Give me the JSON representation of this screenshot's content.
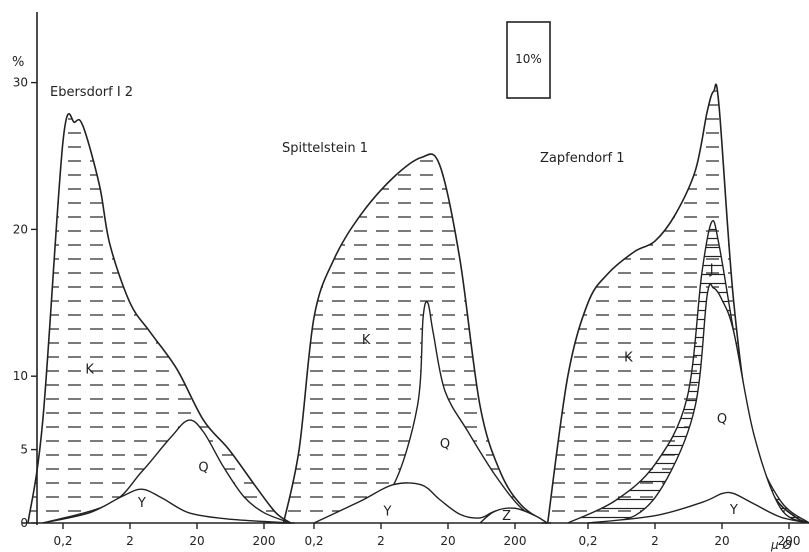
{
  "y_axis": {
    "unit": "%",
    "ticks": [
      {
        "value": 0,
        "label": "0"
      },
      {
        "value": 5,
        "label": "5"
      },
      {
        "value": 10,
        "label": "10"
      },
      {
        "value": 20,
        "label": "20"
      },
      {
        "value": 30,
        "label": "30"
      }
    ]
  },
  "x_unit": "μ Ø",
  "scale_box_label": "10%",
  "chart_data": [
    {
      "type": "area",
      "title": "Ebersdorf I 2",
      "x_ticks": [
        "0,2",
        "2",
        "20",
        "200"
      ],
      "x_tick_values": [
        0.2,
        2,
        20,
        200
      ],
      "xscale": "log",
      "ylim": [
        0,
        36
      ],
      "series": [
        {
          "name": "K",
          "x": [
            0.06,
            0.1,
            0.2,
            0.3,
            0.4,
            0.7,
            1,
            2,
            4,
            10,
            25,
            60,
            150,
            300,
            500
          ],
          "values": [
            0,
            7,
            26,
            27.3,
            27,
            23,
            19,
            15,
            13,
            10.5,
            7,
            5,
            2.5,
            0.7,
            0
          ]
        },
        {
          "name": "Q",
          "x": [
            0.1,
            1,
            3,
            8,
            15,
            25,
            50,
            100,
            200,
            500
          ],
          "values": [
            0,
            1.3,
            3.5,
            5.8,
            7,
            6.2,
            3.8,
            1.8,
            0.7,
            0
          ]
        },
        {
          "name": "Y",
          "x": [
            0.1,
            0.5,
            1.5,
            3,
            6,
            15,
            50,
            200,
            500
          ],
          "values": [
            0,
            0.7,
            1.8,
            2.3,
            1.7,
            0.7,
            0.3,
            0.1,
            0
          ]
        }
      ],
      "area_labels": [
        "K",
        "Q",
        "Y"
      ]
    },
    {
      "type": "area",
      "title": "Spittelstein 1",
      "x_ticks": [
        "0,2",
        "2",
        "20",
        "200"
      ],
      "x_tick_values": [
        0.2,
        2,
        20,
        200
      ],
      "xscale": "log",
      "ylim": [
        0,
        36
      ],
      "series": [
        {
          "name": "K",
          "x": [
            0.07,
            0.12,
            0.2,
            0.4,
            1,
            3,
            8,
            15,
            30,
            60,
            120,
            250,
            600
          ],
          "values": [
            0,
            5,
            14,
            18,
            21,
            23.5,
            24.9,
            24.4,
            18,
            8,
            3.5,
            1.2,
            0
          ]
        },
        {
          "name": "Q",
          "x": [
            0.2,
            1,
            3,
            7,
            8.5,
            10,
            12,
            18,
            40,
            100,
            250,
            600
          ],
          "values": [
            0,
            1,
            2.5,
            8,
            14,
            15,
            13,
            9,
            6.2,
            3.3,
            1,
            0
          ]
        },
        {
          "name": "Y",
          "x": [
            0.2,
            1,
            3,
            8,
            15,
            30,
            60,
            100,
            200,
            400,
            600
          ],
          "values": [
            0,
            1.5,
            2.6,
            2.6,
            1.6,
            0.6,
            0.35,
            0.8,
            1,
            0.5,
            0
          ]
        },
        {
          "name": "Z",
          "x": [
            60,
            100,
            200,
            400,
            600
          ],
          "values": [
            0,
            0.8,
            1,
            0.5,
            0
          ]
        }
      ],
      "area_labels": [
        "K",
        "Q",
        "Y",
        "Z"
      ]
    },
    {
      "type": "area",
      "title": "Zapfendorf 1",
      "x_ticks": [
        "0,2",
        "2",
        "20",
        "200"
      ],
      "x_tick_values": [
        0.2,
        2,
        20,
        200
      ],
      "xscale": "log",
      "ylim": [
        0,
        36
      ],
      "series": [
        {
          "name": "K",
          "x": [
            0.05,
            0.1,
            0.2,
            0.4,
            1,
            2,
            4,
            8,
            12,
            15,
            18,
            30,
            60,
            120,
            250,
            400
          ],
          "values": [
            0,
            10,
            15,
            17,
            18.5,
            19.2,
            21,
            24,
            28,
            29.4,
            28.5,
            15,
            5,
            1.8,
            0.4,
            0
          ]
        },
        {
          "name": "J",
          "x": [
            0.1,
            0.5,
            2,
            6,
            10,
            14,
            18,
            30,
            60,
            150,
            400
          ],
          "values": [
            0,
            1.5,
            4,
            8.5,
            17,
            20.5,
            19,
            13,
            5.5,
            1.5,
            0
          ]
        },
        {
          "name": "Q",
          "x": [
            0.2,
            1,
            3,
            8,
            12,
            15,
            20,
            30,
            60,
            150,
            400
          ],
          "values": [
            0,
            0.5,
            3,
            8,
            15.5,
            16,
            15.2,
            13,
            6,
            1,
            0
          ]
        },
        {
          "name": "Y",
          "x": [
            0.2,
            2,
            10,
            20,
            30,
            60,
            150,
            400
          ],
          "values": [
            0,
            0.5,
            1.4,
            2,
            2,
            1.3,
            0.4,
            0
          ]
        }
      ],
      "area_labels": [
        "K",
        "J",
        "Q",
        "Y"
      ]
    }
  ]
}
